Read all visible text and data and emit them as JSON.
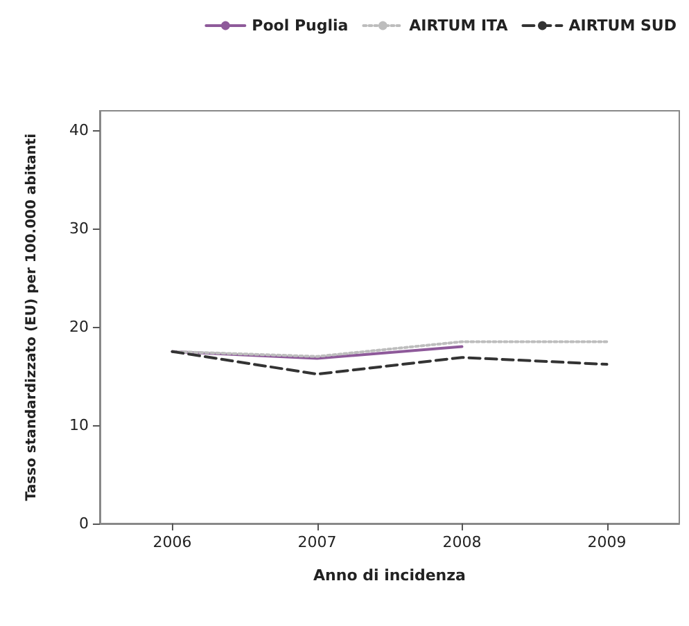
{
  "chart_data": {
    "type": "line",
    "xlabel": "Anno di incidenza",
    "ylabel": "Tasso standardizzato (EU) per 100.000 abitanti",
    "categories": [
      "2006",
      "2007",
      "2008",
      "2009"
    ],
    "series": [
      {
        "name": "Pool Puglia",
        "color": "#8e5a9a",
        "line_style": "solid",
        "values": [
          17.5,
          16.8,
          18.0,
          null
        ]
      },
      {
        "name": "AIRTUM ITA",
        "color": "#bdbdbd",
        "line_style": "dotted",
        "values": [
          17.5,
          17.0,
          18.5,
          18.5
        ]
      },
      {
        "name": "AIRTUM SUD",
        "color": "#333333",
        "line_style": "dashed",
        "values": [
          17.5,
          15.2,
          16.9,
          16.2
        ]
      }
    ],
    "ylim": [
      0,
      42
    ],
    "yticks": [
      0,
      10,
      20,
      30,
      40
    ],
    "grid": false,
    "legend": "top right",
    "marker": "none"
  }
}
